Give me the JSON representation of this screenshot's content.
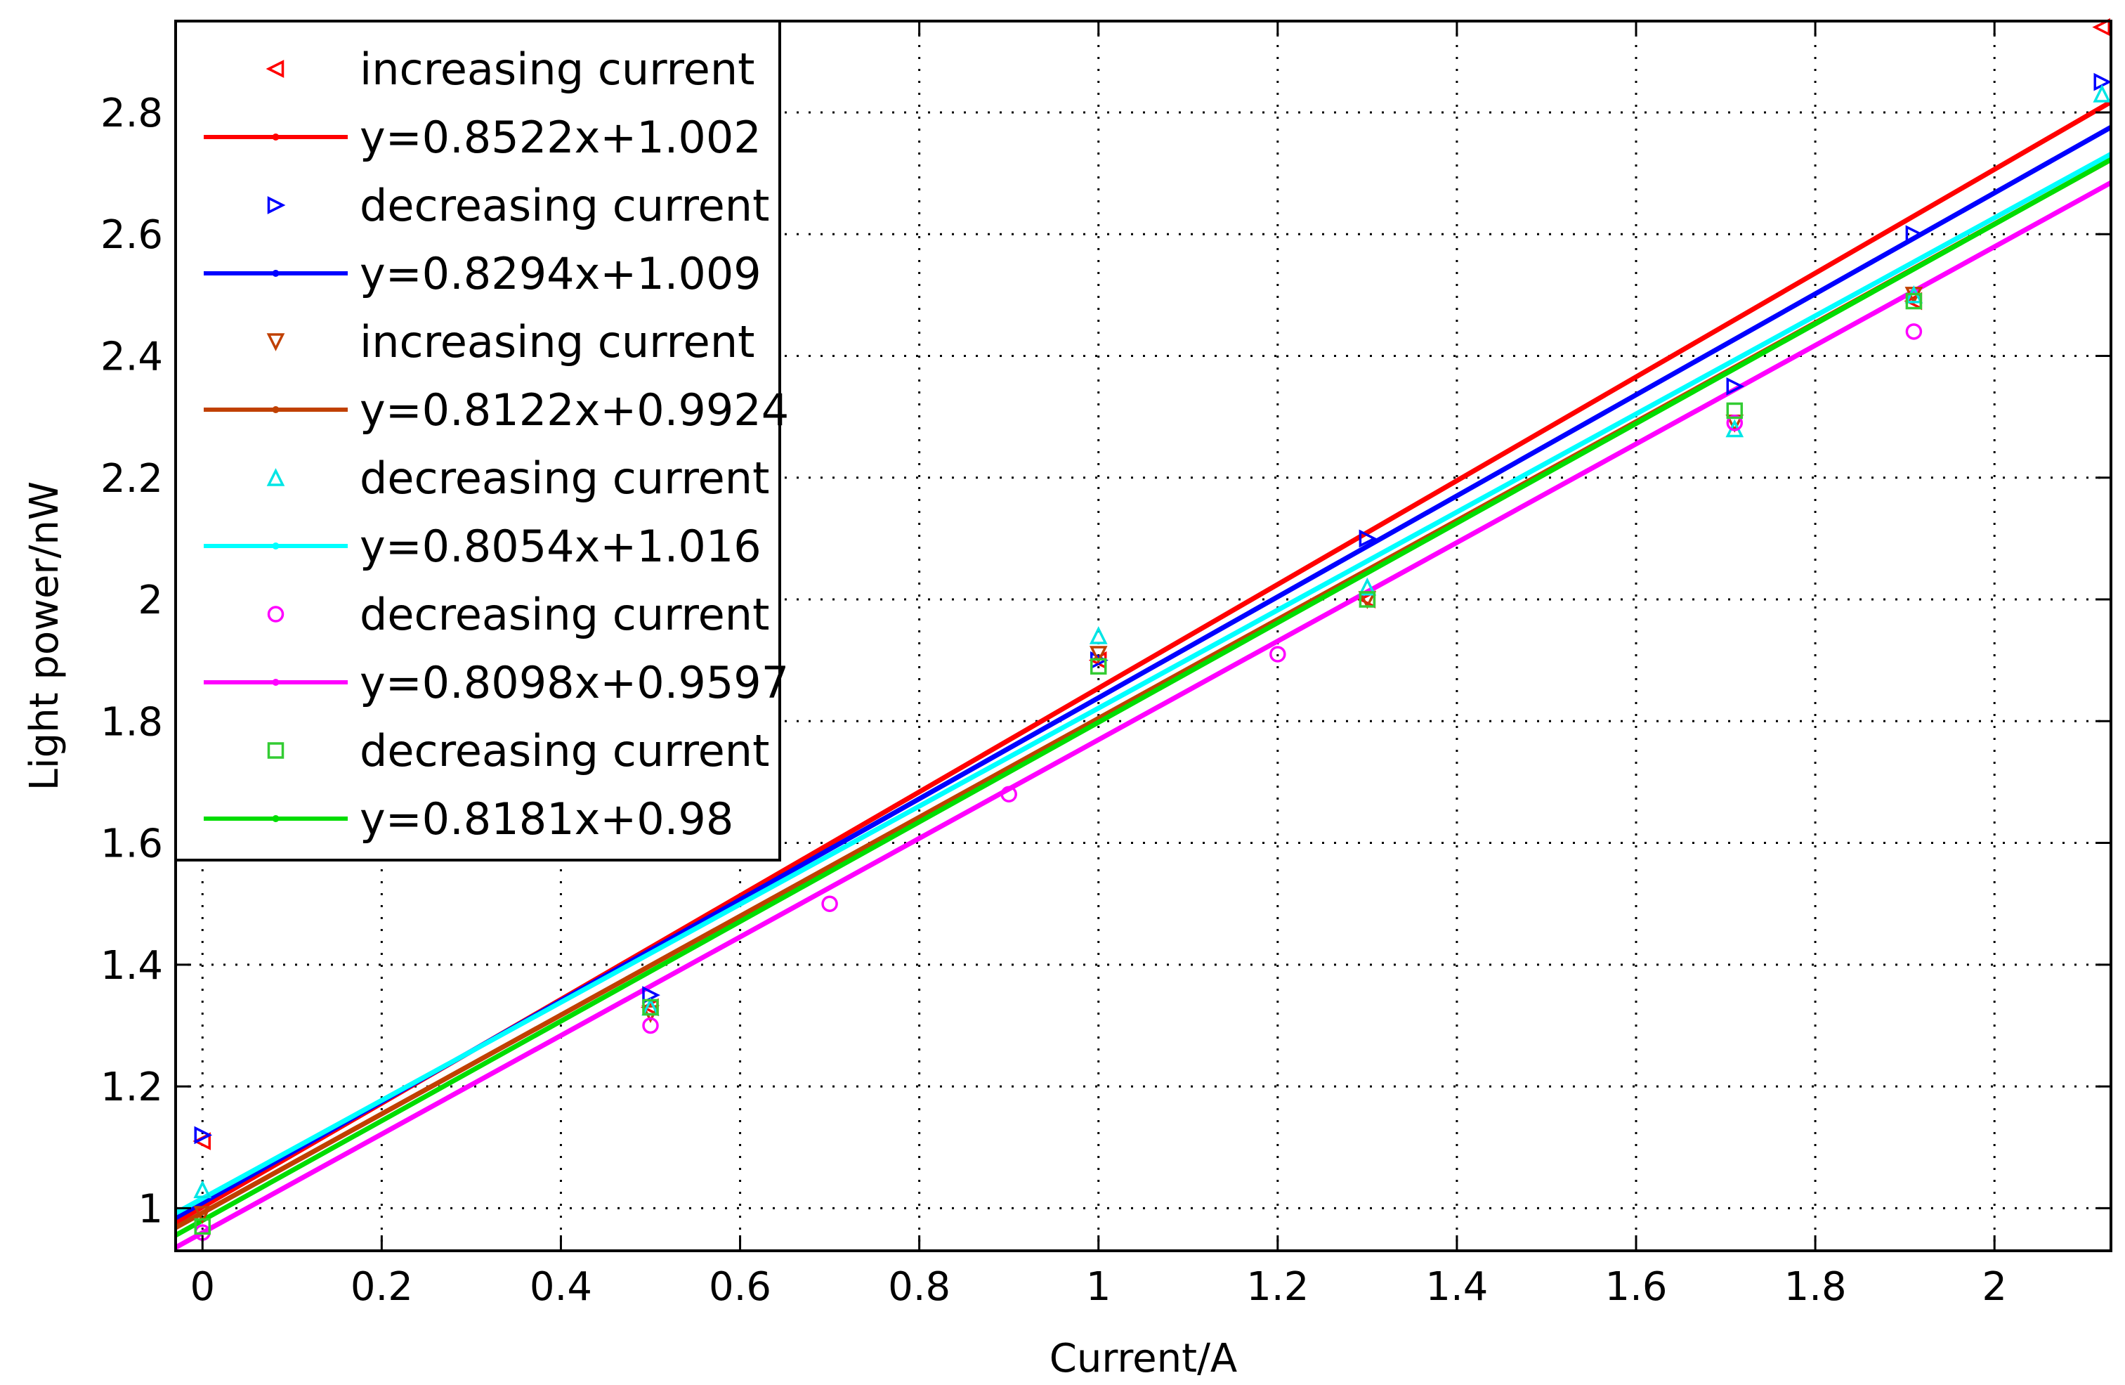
{
  "chart_data": {
    "type": "scatter",
    "title": "",
    "xlabel": "Current/A",
    "ylabel": "Light power/nW",
    "xlim": [
      -0.03,
      2.13
    ],
    "ylim": [
      0.93,
      2.95
    ],
    "xticks": [
      0,
      0.2,
      0.4,
      0.6,
      0.8,
      1,
      1.2,
      1.4,
      1.6,
      1.8,
      2
    ],
    "yticks": [
      1,
      1.2,
      1.4,
      1.6,
      1.8,
      2,
      2.2,
      2.4,
      2.6,
      2.8
    ],
    "grid": true,
    "legend_position": "top-left",
    "series": [
      {
        "name": "increasing current",
        "kind": "markers",
        "marker": "triangle-left",
        "color": "#ff0000",
        "points": [
          [
            0,
            1.11
          ],
          [
            0.5,
            1.33
          ],
          [
            1.0,
            1.9
          ],
          [
            1.3,
            2.0
          ],
          [
            1.91,
            2.49
          ],
          [
            2.12,
            2.94
          ]
        ]
      },
      {
        "name": "y=0.8522x+1.002",
        "kind": "line",
        "color": "#ff0000",
        "slope": 0.8522,
        "intercept": 1.002
      },
      {
        "name": "decreasing current",
        "kind": "markers",
        "marker": "triangle-right",
        "color": "#0000ff",
        "points": [
          [
            0,
            1.12
          ],
          [
            0.5,
            1.35
          ],
          [
            1.0,
            1.9
          ],
          [
            1.3,
            2.1
          ],
          [
            1.71,
            2.35
          ],
          [
            1.91,
            2.6
          ],
          [
            2.12,
            2.85
          ]
        ]
      },
      {
        "name": "y=0.8294x+1.009",
        "kind": "line",
        "color": "#0000ff",
        "slope": 0.8294,
        "intercept": 1.009
      },
      {
        "name": "increasing current",
        "kind": "markers",
        "marker": "triangle-down",
        "color": "#c04000",
        "points": [
          [
            0,
            0.99
          ],
          [
            0.5,
            1.32
          ],
          [
            1.0,
            1.91
          ],
          [
            1.3,
            2.0
          ],
          [
            1.71,
            2.29
          ],
          [
            1.91,
            2.5
          ]
        ]
      },
      {
        "name": "y=0.8122x+0.9924",
        "kind": "line",
        "color": "#c04000",
        "slope": 0.8122,
        "intercept": 0.9924
      },
      {
        "name": "decreasing current",
        "kind": "markers",
        "marker": "triangle-up",
        "color": "#00e5e5",
        "points": [
          [
            0,
            1.03
          ],
          [
            0.5,
            1.33
          ],
          [
            1.0,
            1.94
          ],
          [
            1.3,
            2.02
          ],
          [
            1.71,
            2.28
          ],
          [
            1.91,
            2.5
          ],
          [
            2.12,
            2.83
          ]
        ]
      },
      {
        "name": "y=0.8054x+1.016",
        "kind": "line",
        "color": "#00ffff",
        "slope": 0.8054,
        "intercept": 1.016
      },
      {
        "name": "decreasing current",
        "kind": "markers",
        "marker": "circle",
        "color": "#ff00ff",
        "points": [
          [
            0,
            0.96
          ],
          [
            0.5,
            1.3
          ],
          [
            0.7,
            1.5
          ],
          [
            0.9,
            1.68
          ],
          [
            1.2,
            1.91
          ],
          [
            1.71,
            2.29
          ],
          [
            1.91,
            2.44
          ]
        ]
      },
      {
        "name": "y=0.8098x+0.9597",
        "kind": "line",
        "color": "#ff00ff",
        "slope": 0.8098,
        "intercept": 0.9597
      },
      {
        "name": "decreasing current",
        "kind": "markers",
        "marker": "square",
        "color": "#33cc33",
        "points": [
          [
            0,
            0.97
          ],
          [
            0.5,
            1.33
          ],
          [
            1.0,
            1.89
          ],
          [
            1.3,
            2.0
          ],
          [
            1.71,
            2.31
          ],
          [
            1.91,
            2.49
          ]
        ]
      },
      {
        "name": "y=0.8181x+0.98",
        "kind": "line",
        "color": "#00dd00",
        "slope": 0.8181,
        "intercept": 0.98
      }
    ]
  }
}
